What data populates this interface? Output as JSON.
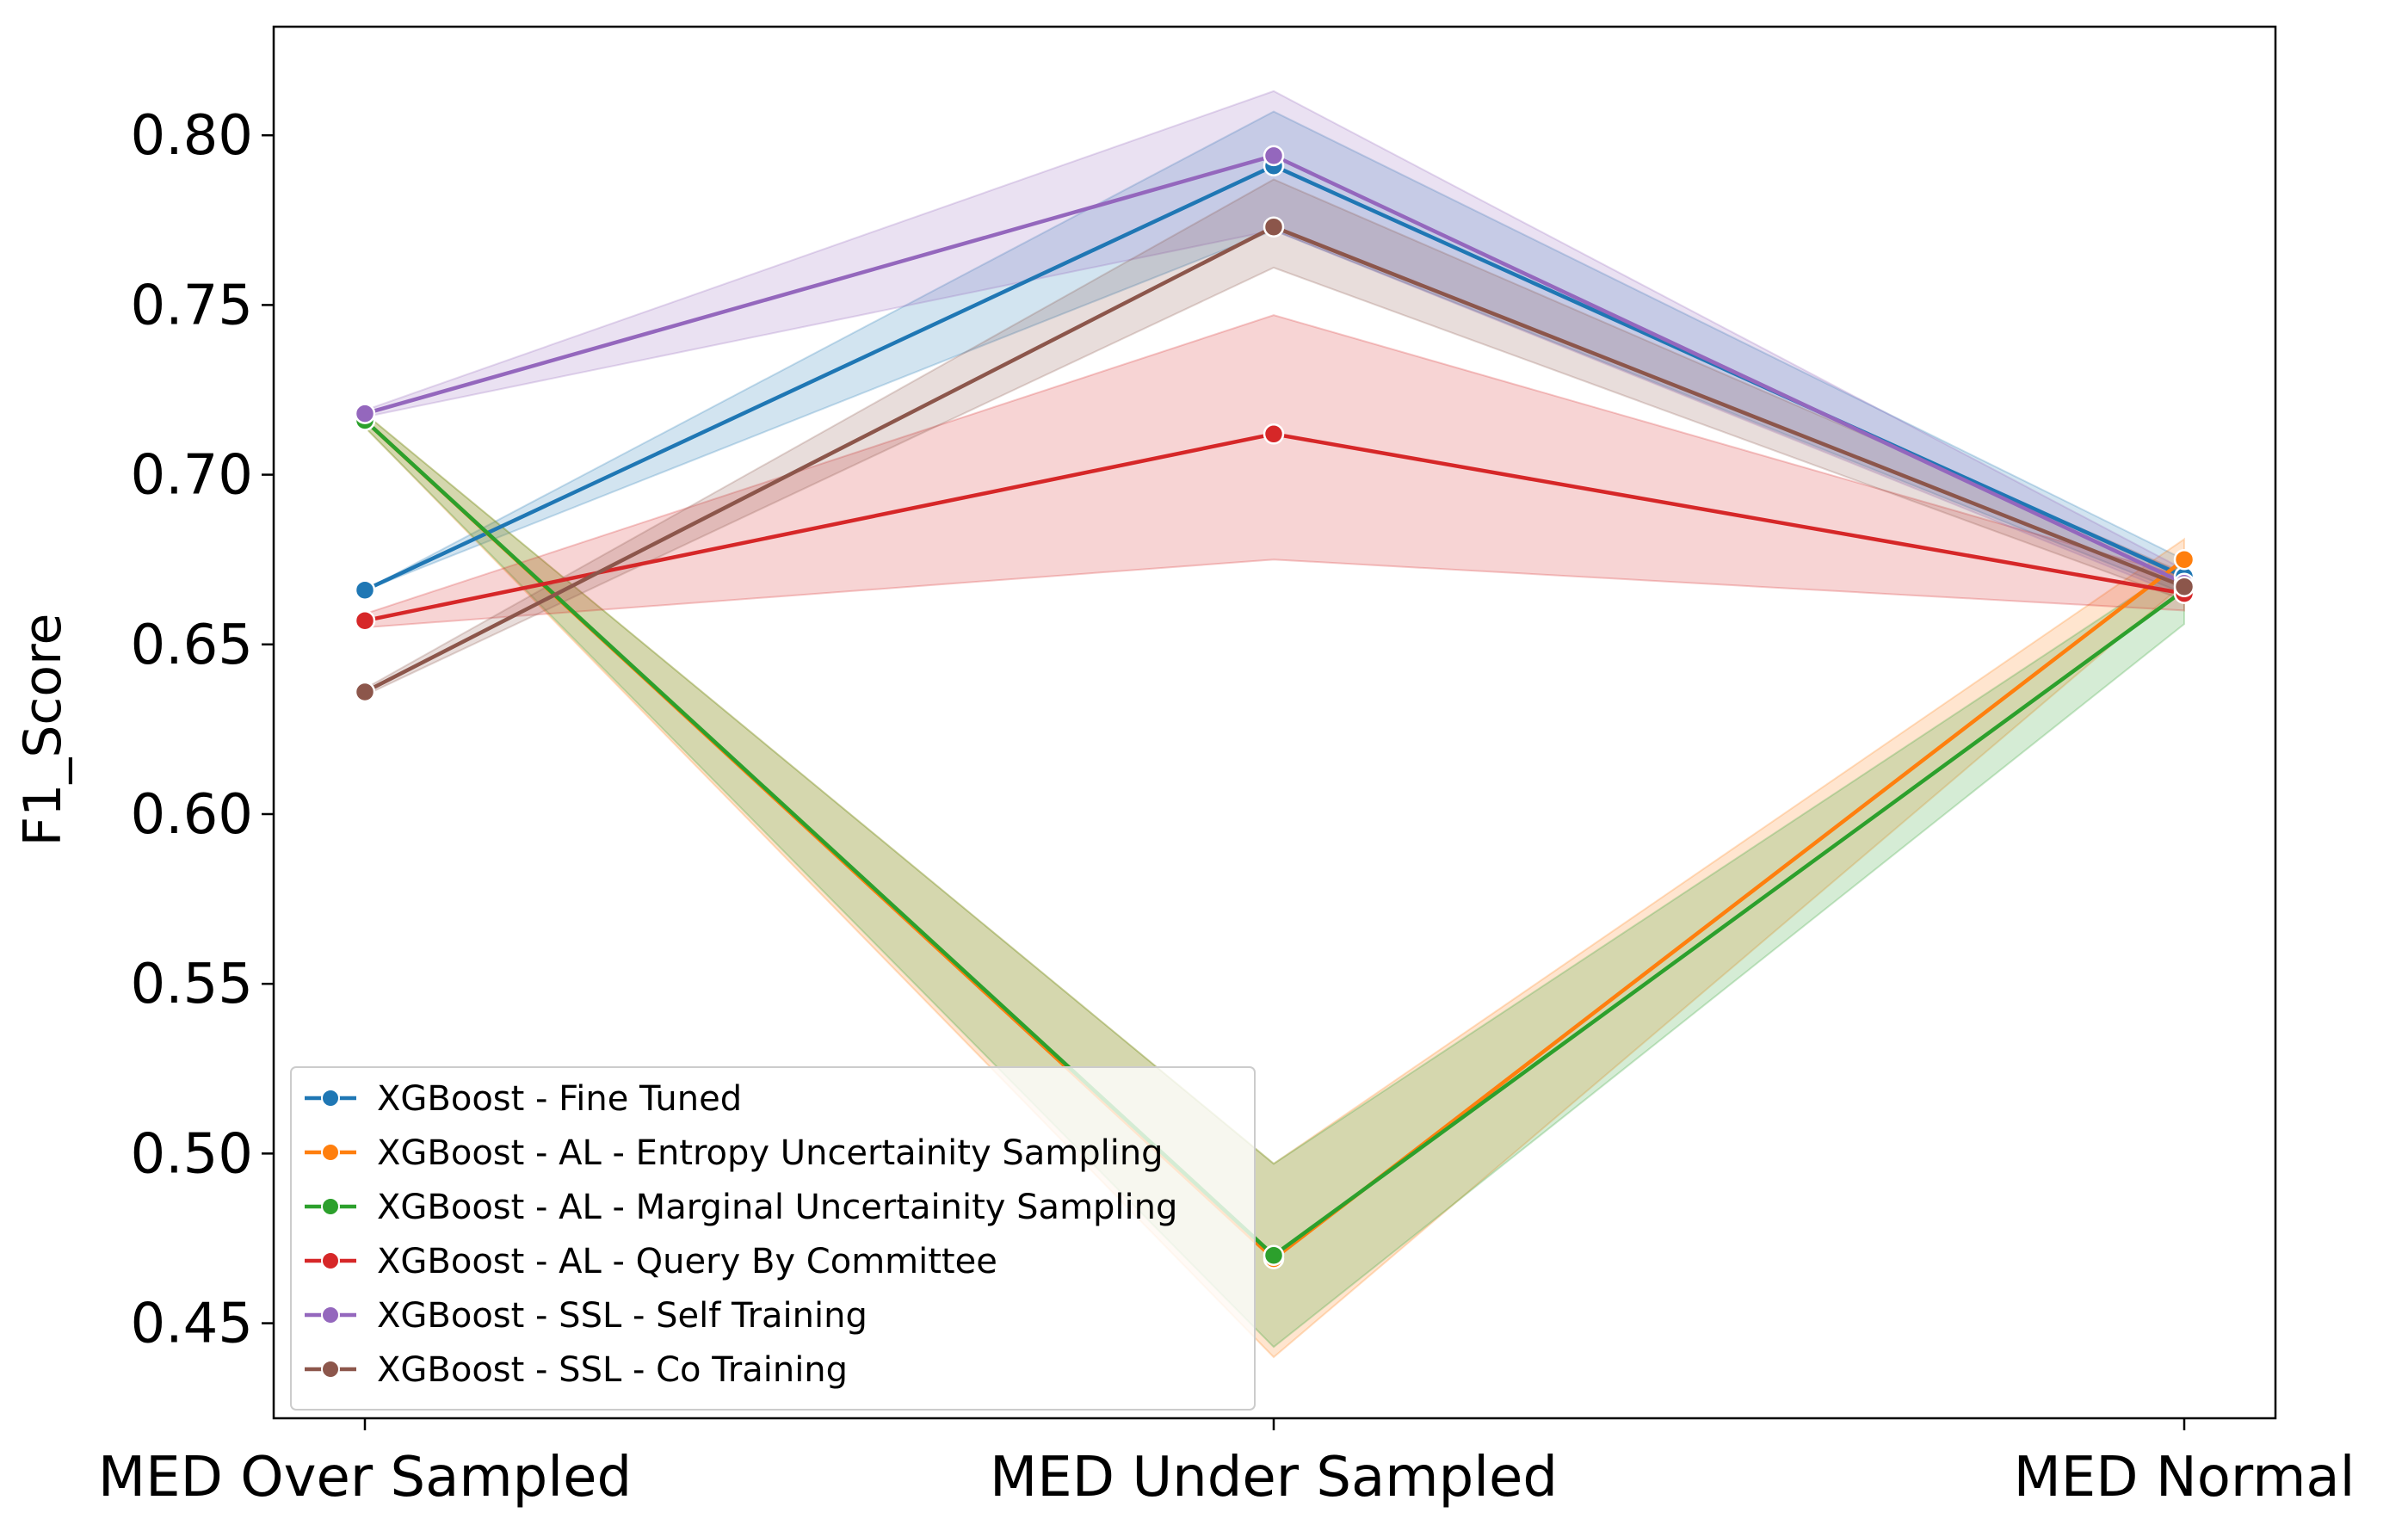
{
  "chart_data": {
    "type": "line",
    "title": "",
    "xlabel": "",
    "ylabel": "F1_Score",
    "categories": [
      "MED Over Sampled",
      "MED Under Sampled",
      "MED Normal"
    ],
    "ylim": [
      0.422,
      0.832
    ],
    "yticks": [
      0.45,
      0.5,
      0.55,
      0.6,
      0.65,
      0.7,
      0.75,
      0.8
    ],
    "ytick_labels": [
      "0.45",
      "0.50",
      "0.55",
      "0.60",
      "0.65",
      "0.70",
      "0.75",
      "0.80"
    ],
    "grid": false,
    "legend_position": "lower-left",
    "series": [
      {
        "name": "XGBoost - Fine Tuned",
        "color": "#1f77b4",
        "values": [
          0.666,
          0.791,
          0.67
        ],
        "ci_low": [
          0.666,
          0.772,
          0.665
        ],
        "ci_high": [
          0.666,
          0.807,
          0.675
        ]
      },
      {
        "name": "XGBoost - AL - Entropy Uncertainity Sampling",
        "color": "#ff7f0e",
        "values": [
          0.716,
          0.469,
          0.675
        ],
        "ci_low": [
          0.714,
          0.44,
          0.668
        ],
        "ci_high": [
          0.718,
          0.497,
          0.681
        ]
      },
      {
        "name": "XGBoost - AL - Marginal Uncertainity Sampling",
        "color": "#2ca02c",
        "values": [
          0.716,
          0.47,
          0.666
        ],
        "ci_low": [
          0.714,
          0.443,
          0.656
        ],
        "ci_high": [
          0.718,
          0.497,
          0.674
        ]
      },
      {
        "name": "XGBoost - AL - Query By Committee",
        "color": "#d62728",
        "values": [
          0.657,
          0.712,
          0.665
        ],
        "ci_low": [
          0.655,
          0.675,
          0.66
        ],
        "ci_high": [
          0.659,
          0.747,
          0.67
        ]
      },
      {
        "name": "XGBoost - SSL - Self Training",
        "color": "#9467bd",
        "values": [
          0.718,
          0.794,
          0.668
        ],
        "ci_low": [
          0.717,
          0.772,
          0.664
        ],
        "ci_high": [
          0.719,
          0.813,
          0.672
        ]
      },
      {
        "name": "XGBoost - SSL - Co Training",
        "color": "#8c564b",
        "values": [
          0.636,
          0.773,
          0.667
        ],
        "ci_low": [
          0.635,
          0.761,
          0.663
        ],
        "ci_high": [
          0.637,
          0.787,
          0.671
        ]
      }
    ]
  }
}
